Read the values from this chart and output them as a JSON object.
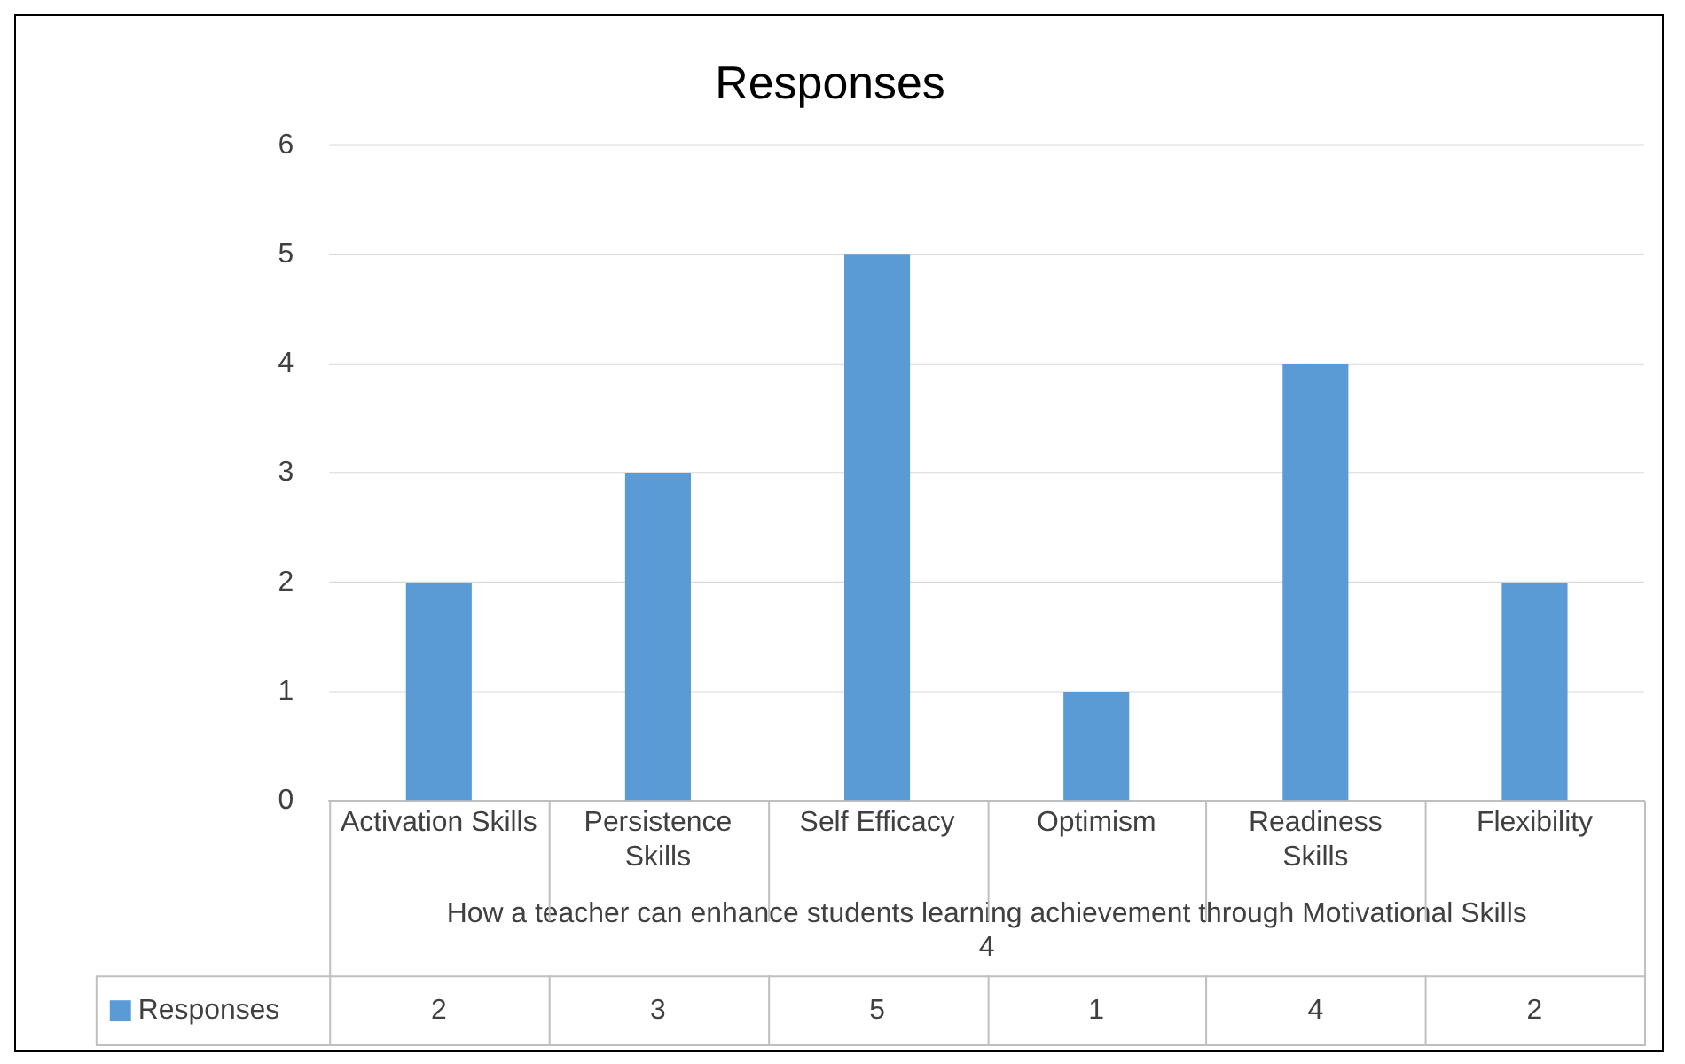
{
  "chart_data": {
    "type": "bar",
    "title": "Responses",
    "xlabel": "How a teacher can enhance students learning achievement through Motivational Skills\n4",
    "categories": [
      "Activation Skills",
      "Persistence Skills",
      "Self Efficacy",
      "Optimism",
      "Readiness Skills",
      "Flexibility"
    ],
    "series": [
      {
        "name": "Responses",
        "color": "#5b9bd5",
        "values": [
          2,
          3,
          5,
          1,
          4,
          2
        ]
      }
    ],
    "ylim": [
      0,
      6
    ],
    "yticks": [
      0,
      1,
      2,
      3,
      4,
      5,
      6
    ],
    "grid": "y",
    "legend": "bottom",
    "data_labels": true
  }
}
